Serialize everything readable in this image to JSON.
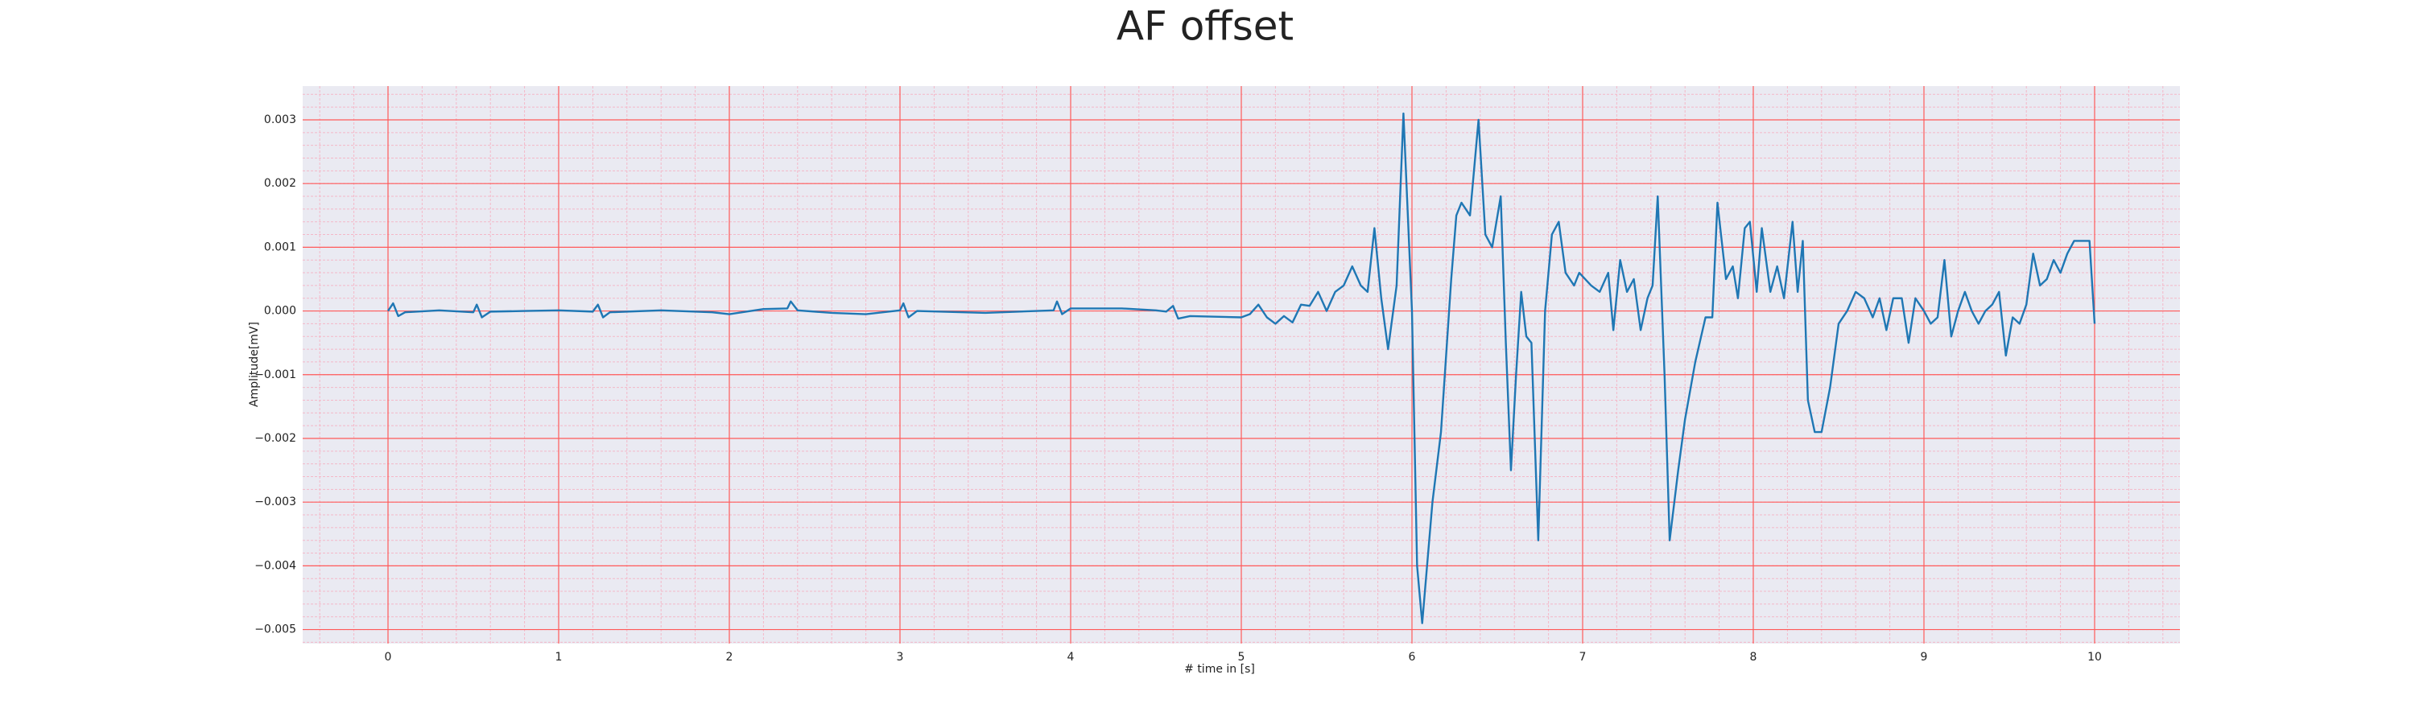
{
  "chart_data": {
    "type": "line",
    "title": "AF offset",
    "x_label": "# time in [s]",
    "y_label": "Amplitude[mV]",
    "xlim": [
      -0.5,
      10.5
    ],
    "xticks": [
      0,
      1,
      2,
      3,
      4,
      5,
      6,
      7,
      8,
      9,
      10
    ],
    "ylim": [
      -0.00522,
      0.00353
    ],
    "yticks": [
      {
        "value": -0.005,
        "label": "−0.005"
      },
      {
        "value": -0.004,
        "label": "−0.004"
      },
      {
        "value": -0.003,
        "label": "−0.003"
      },
      {
        "value": -0.002,
        "label": "−0.002"
      },
      {
        "value": -0.001,
        "label": "−0.001"
      },
      {
        "value": 0,
        "label": "0.000"
      },
      {
        "value": 0.001,
        "label": "0.001"
      },
      {
        "value": 0.002,
        "label": "0.002"
      },
      {
        "value": 0.003,
        "label": "0.003"
      }
    ],
    "grid": true,
    "minor_grid": true,
    "minor_divisions": 5,
    "grid_color": "#ff5a5a",
    "minor_grid_color": "#f4b8c8",
    "background": "#eaeaf2",
    "series": [
      {
        "color": "#1f77b4",
        "x": [
          0,
          0.03,
          0.06,
          0.1,
          0.3,
          0.5,
          0.52,
          0.55,
          0.6,
          0.8,
          1.0,
          1.2,
          1.23,
          1.26,
          1.3,
          1.6,
          1.9,
          2.0,
          2.2,
          2.34,
          2.36,
          2.4,
          2.6,
          2.8,
          3.0,
          3.02,
          3.05,
          3.1,
          3.5,
          3.9,
          3.92,
          3.95,
          4.0,
          4.3,
          4.5,
          4.56,
          4.6,
          4.63,
          4.7,
          5.0,
          5.05,
          5.1,
          5.15,
          5.2,
          5.25,
          5.3,
          5.35,
          5.4,
          5.45,
          5.5,
          5.55,
          5.6,
          5.65,
          5.7,
          5.74,
          5.78,
          5.82,
          5.86,
          5.91,
          5.95,
          6.0,
          6.03,
          6.06,
          6.12,
          6.17,
          6.23,
          6.26,
          6.29,
          6.34,
          6.39,
          6.43,
          6.47,
          6.52,
          6.55,
          6.58,
          6.61,
          6.64,
          6.67,
          6.7,
          6.74,
          6.78,
          6.82,
          6.86,
          6.9,
          6.95,
          6.98,
          7.05,
          7.1,
          7.15,
          7.18,
          7.22,
          7.26,
          7.3,
          7.34,
          7.38,
          7.41,
          7.44,
          7.48,
          7.51,
          7.56,
          7.6,
          7.66,
          7.72,
          7.76,
          7.79,
          7.84,
          7.88,
          7.91,
          7.95,
          7.98,
          8.02,
          8.05,
          8.1,
          8.14,
          8.18,
          8.23,
          8.26,
          8.29,
          8.32,
          8.36,
          8.4,
          8.45,
          8.5,
          8.55,
          8.6,
          8.65,
          8.7,
          8.74,
          8.78,
          8.82,
          8.87,
          8.91,
          8.95,
          9.0,
          9.04,
          9.08,
          9.12,
          9.16,
          9.2,
          9.24,
          9.28,
          9.32,
          9.36,
          9.4,
          9.44,
          9.48,
          9.52,
          9.56,
          9.6,
          9.64,
          9.68,
          9.72,
          9.76,
          9.8,
          9.84,
          9.88,
          9.92,
          9.97,
          10.0
        ],
        "values": [
          0,
          0.00012,
          -8e-05,
          -2e-05,
          1e-05,
          -2e-05,
          0.0001,
          -0.0001,
          -1e-05,
          0,
          1e-05,
          -1e-05,
          0.0001,
          -0.0001,
          -2e-05,
          1e-05,
          -2e-05,
          -5e-05,
          3e-05,
          4e-05,
          0.00015,
          1e-05,
          -3e-05,
          -5e-05,
          1e-05,
          0.00012,
          -0.0001,
          0,
          -3e-05,
          1e-05,
          0.00015,
          -5e-05,
          4e-05,
          4e-05,
          1e-05,
          -1e-05,
          8e-05,
          -0.00012,
          -8e-05,
          -0.0001,
          -5e-05,
          0.0001,
          -0.0001,
          -0.0002,
          -8e-05,
          -0.00018,
          0.0001,
          8e-05,
          0.0003,
          0,
          0.0003,
          0.0004,
          0.0007,
          0.0004,
          0.0003,
          0.0013,
          0.0002,
          -0.0006,
          0.0004,
          0.0031,
          0,
          -0.004,
          -0.0049,
          -0.003,
          -0.0019,
          0.0005,
          0.0015,
          0.0017,
          0.0015,
          0.003,
          0.0012,
          0.001,
          0.0018,
          -0.0005,
          -0.0025,
          -0.001,
          0.0003,
          -0.0004,
          -0.0005,
          -0.0036,
          0,
          0.0012,
          0.0014,
          0.0006,
          0.0004,
          0.0006,
          0.0004,
          0.0003,
          0.0006,
          -0.0003,
          0.0008,
          0.0003,
          0.0005,
          -0.0003,
          0.0002,
          0.0004,
          0.0018,
          -0.001,
          -0.0036,
          -0.0025,
          -0.0017,
          -0.0008,
          -0.0001,
          -0.0001,
          0.0017,
          0.0005,
          0.0007,
          0.0002,
          0.0013,
          0.0014,
          0.0003,
          0.0013,
          0.0003,
          0.0007,
          0.0002,
          0.0014,
          0.0003,
          0.0011,
          -0.0014,
          -0.0019,
          -0.0019,
          -0.0012,
          -0.0002,
          0,
          0.0003,
          0.0002,
          -0.0001,
          0.0002,
          -0.0003,
          0.0002,
          0.0002,
          -0.0005,
          0.0002,
          0,
          -0.0002,
          -0.0001,
          0.0008,
          -0.0004,
          0,
          0.0003,
          0,
          -0.0002,
          0,
          0.0001,
          0.0003,
          -0.0007,
          -0.0001,
          -0.0002,
          0.0001,
          0.0009,
          0.0004,
          0.0005,
          0.0008,
          0.0006,
          0.0009,
          0.0011,
          0.0011,
          0.0011,
          -0.0002
        ]
      }
    ]
  }
}
